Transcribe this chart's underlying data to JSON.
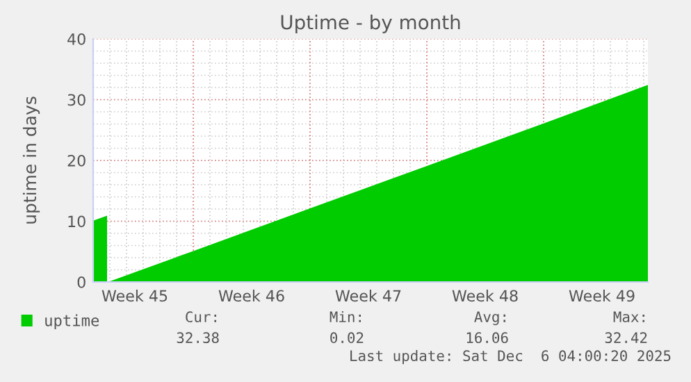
{
  "chart_data": {
    "type": "area",
    "title": "Uptime - by month",
    "ylabel": "uptime in days",
    "x": [
      "2025-11-04T00:00",
      "2025-11-04T20:00",
      "2025-11-04T21:00",
      "2025-11-04T22:00",
      "2025-11-10T00:00",
      "2025-11-17T00:00",
      "2025-11-24T00:00",
      "2025-12-01T00:00",
      "2025-12-07T06:00"
    ],
    "series": [
      {
        "name": "uptime",
        "color": "#00cc00",
        "values": [
          10.1,
          10.9,
          null,
          0.02,
          5.1,
          12.1,
          19.1,
          26.1,
          32.42
        ]
      }
    ],
    "xlim": [
      "2025-11-04T00:00",
      "2025-12-07T06:00"
    ],
    "xticks": [
      {
        "value": "2025-11-06T12:00",
        "label": "Week 45"
      },
      {
        "value": "2025-11-10T00:00",
        "label": null
      },
      {
        "value": "2025-11-13T12:00",
        "label": "Week 46"
      },
      {
        "value": "2025-11-17T00:00",
        "label": null
      },
      {
        "value": "2025-11-20T12:00",
        "label": "Week 47"
      },
      {
        "value": "2025-11-24T00:00",
        "label": null
      },
      {
        "value": "2025-11-27T12:00",
        "label": "Week 48"
      },
      {
        "value": "2025-12-01T00:00",
        "label": null
      },
      {
        "value": "2025-12-04T12:00",
        "label": "Week 49"
      }
    ],
    "ylim": [
      0,
      40
    ],
    "yticks": [
      0,
      10,
      20,
      30,
      40
    ],
    "grid": true,
    "legend": "bottom left",
    "annotations": [
      "Cur:",
      "Min:",
      "Avg:",
      "Max:",
      "32.38",
      "0.02",
      "16.06",
      "32.42",
      "Last update: Sat Dec  6 04:00:20 2025"
    ]
  }
}
